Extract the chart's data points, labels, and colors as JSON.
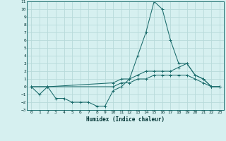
{
  "title": "",
  "xlabel": "Humidex (Indice chaleur)",
  "ylabel": "",
  "bg_color": "#d6f0f0",
  "grid_color": "#b8dada",
  "line_color": "#1a6b6b",
  "xlim": [
    -0.5,
    23.5
  ],
  "ylim": [
    -3,
    11
  ],
  "xticks": [
    0,
    1,
    2,
    3,
    4,
    5,
    6,
    7,
    8,
    9,
    10,
    11,
    12,
    13,
    14,
    15,
    16,
    17,
    18,
    19,
    20,
    21,
    22,
    23
  ],
  "yticks": [
    -3,
    -2,
    -1,
    0,
    1,
    2,
    3,
    4,
    5,
    6,
    7,
    8,
    9,
    10,
    11
  ],
  "line1_x": [
    0,
    1,
    2,
    3,
    4,
    5,
    6,
    7,
    8,
    9,
    10,
    11,
    12,
    13,
    14,
    15,
    16,
    17,
    18,
    19,
    20,
    21,
    22,
    23
  ],
  "line1_y": [
    0,
    -1,
    0,
    -1.5,
    -1.5,
    -2,
    -2,
    -2,
    -2.5,
    -2.5,
    -0.5,
    0,
    1,
    4,
    7,
    11,
    10,
    6,
    3,
    3,
    1.5,
    1,
    0,
    0
  ],
  "line2_x": [
    0,
    2,
    10,
    11,
    12,
    13,
    14,
    15,
    16,
    17,
    18,
    19,
    20,
    21,
    22,
    23
  ],
  "line2_y": [
    0,
    0,
    0.5,
    1,
    1,
    1.5,
    2,
    2,
    2,
    2,
    2.5,
    3,
    1.5,
    1,
    0,
    0
  ],
  "line3_x": [
    0,
    2,
    10,
    11,
    12,
    13,
    14,
    15,
    16,
    17,
    18,
    19,
    20,
    21,
    22,
    23
  ],
  "line3_y": [
    0,
    0,
    0,
    0.5,
    0.5,
    1,
    1,
    1.5,
    1.5,
    1.5,
    1.5,
    1.5,
    1,
    0.5,
    0,
    0
  ]
}
